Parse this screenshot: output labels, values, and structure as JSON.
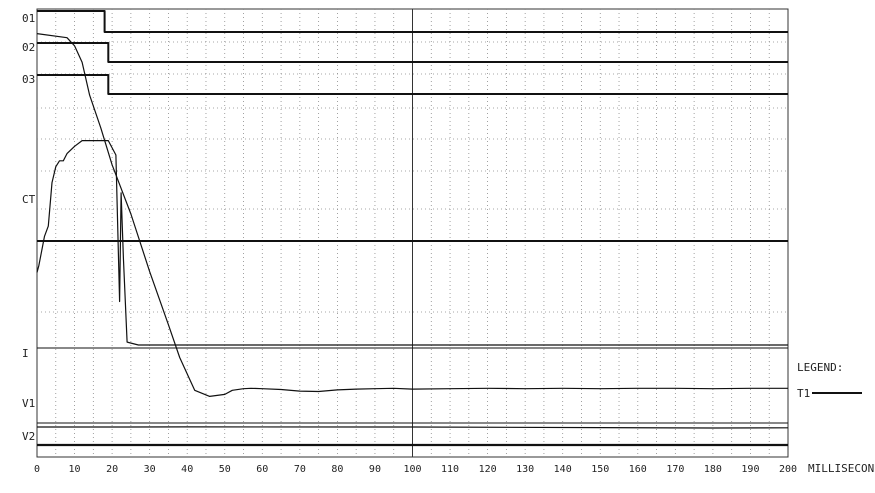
{
  "chart_data": {
    "type": "line",
    "title": "",
    "xlabel": "MILLISECONDS",
    "ylabel": "",
    "xlim": [
      0,
      200
    ],
    "grid": true,
    "x_ticks": [
      "0",
      "10",
      "20",
      "30",
      "40",
      "50",
      "60",
      "70",
      "80",
      "90",
      "100",
      "110",
      "120",
      "130",
      "140",
      "150",
      "160",
      "170",
      "180",
      "190",
      "200"
    ],
    "channel_labels": [
      "01",
      "02",
      "03",
      "CT",
      "I",
      "V1",
      "V2"
    ],
    "legend": {
      "title": "LEGEND:",
      "entries": [
        "T1"
      ],
      "placement": "right"
    },
    "series": [
      {
        "channel": "01",
        "kind": "step",
        "points": [
          [
            0,
            1
          ],
          [
            18,
            1
          ],
          [
            18,
            0
          ],
          [
            200,
            0
          ]
        ]
      },
      {
        "channel": "02",
        "kind": "step",
        "points": [
          [
            0,
            1
          ],
          [
            19,
            1
          ],
          [
            19,
            0
          ],
          [
            200,
            0
          ]
        ]
      },
      {
        "channel": "03",
        "kind": "step",
        "points": [
          [
            0,
            1
          ],
          [
            19,
            1
          ],
          [
            19,
            0
          ],
          [
            200,
            0
          ]
        ]
      },
      {
        "channel": "CT",
        "kind": "trace",
        "points": [
          [
            0,
            0.5
          ],
          [
            0.5,
            0.55
          ],
          [
            2,
            0.75
          ],
          [
            3,
            0.82
          ],
          [
            4,
            1.12
          ],
          [
            5,
            1.23
          ],
          [
            6,
            1.27
          ],
          [
            7,
            1.27
          ],
          [
            8,
            1.32
          ],
          [
            10,
            1.37
          ],
          [
            12,
            1.41
          ],
          [
            19,
            1.41
          ],
          [
            21,
            1.31
          ],
          [
            22,
            0.3
          ],
          [
            22.4,
            1.05
          ],
          [
            23,
            0.6
          ],
          [
            24,
            0.02
          ],
          [
            27,
            0.0
          ],
          [
            200,
            0.0
          ]
        ]
      },
      {
        "channel": "I",
        "kind": "trace",
        "points": [
          [
            0,
            1.04
          ],
          [
            8,
            1.03
          ],
          [
            10,
            1.01
          ],
          [
            12,
            0.97
          ],
          [
            14,
            0.89
          ],
          [
            17,
            0.81
          ],
          [
            20,
            0.72
          ],
          [
            25,
            0.6
          ],
          [
            30,
            0.46
          ],
          [
            35,
            0.33
          ],
          [
            38,
            0.25
          ],
          [
            42,
            0.17
          ],
          [
            46,
            0.155
          ],
          [
            50,
            0.16
          ],
          [
            52,
            0.17
          ],
          [
            55,
            0.174
          ],
          [
            57,
            0.175
          ],
          [
            60,
            0.174
          ],
          [
            65,
            0.172
          ],
          [
            70,
            0.168
          ],
          [
            75,
            0.167
          ],
          [
            80,
            0.171
          ],
          [
            85,
            0.173
          ],
          [
            90,
            0.174
          ],
          [
            95,
            0.175
          ],
          [
            100,
            0.173
          ],
          [
            110,
            0.174
          ],
          [
            120,
            0.175
          ],
          [
            130,
            0.174
          ],
          [
            140,
            0.175
          ],
          [
            150,
            0.174
          ],
          [
            160,
            0.175
          ],
          [
            170,
            0.175
          ],
          [
            180,
            0.174
          ],
          [
            190,
            0.175
          ],
          [
            200,
            0.175
          ]
        ]
      },
      {
        "channel": "V1",
        "kind": "flat",
        "points": [
          [
            0,
            0
          ],
          [
            200,
            0
          ]
        ]
      },
      {
        "channel": "V2",
        "kind": "trace",
        "points": [
          [
            0,
            0
          ],
          [
            20,
            0.01
          ],
          [
            40,
            0.02
          ],
          [
            100,
            0.01
          ],
          [
            150,
            -0.15
          ],
          [
            180,
            -0.25
          ],
          [
            200,
            -0.2
          ]
        ]
      }
    ]
  }
}
